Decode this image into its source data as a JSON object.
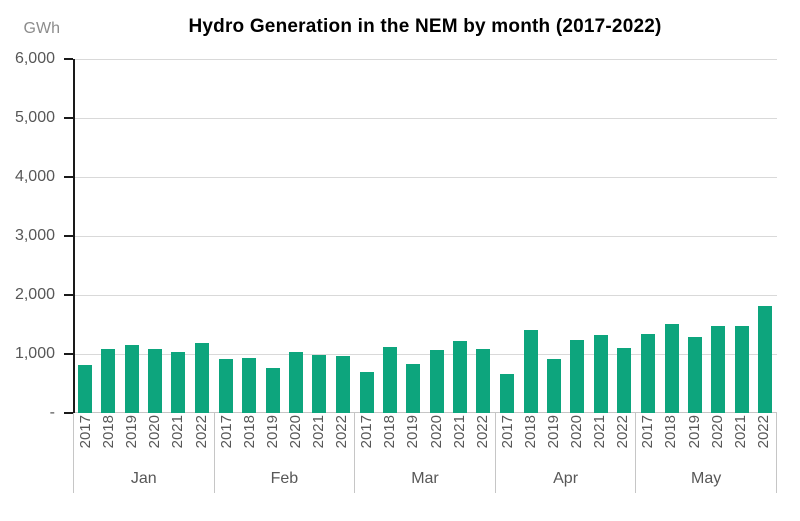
{
  "header": {
    "title": "Hydro Generation in the NEM by month (2017-2022)",
    "unit_label": "GWh"
  },
  "chart_data": {
    "type": "bar",
    "title": "Hydro Generation in the NEM by month (2017-2022)",
    "ylabel": "GWh",
    "xlabel": "",
    "ylim": [
      0,
      6000
    ],
    "ytick_interval": 1000,
    "grid": true,
    "legend": false,
    "yticks": [
      {
        "value": 0,
        "label": "-"
      },
      {
        "value": 1000,
        "label": "1,000"
      },
      {
        "value": 2000,
        "label": "2,000"
      },
      {
        "value": 3000,
        "label": "3,000"
      },
      {
        "value": 4000,
        "label": "4,000"
      },
      {
        "value": 5000,
        "label": "5,000"
      },
      {
        "value": 6000,
        "label": "6,000"
      }
    ],
    "group_labels": [
      "Jan",
      "Feb",
      "Mar",
      "Apr",
      "May"
    ],
    "bar_labels": [
      "2017",
      "2018",
      "2019",
      "2020",
      "2021",
      "2022"
    ],
    "groups": [
      {
        "month": "Jan",
        "values": [
          820,
          1090,
          1150,
          1080,
          1040,
          1190
        ]
      },
      {
        "month": "Feb",
        "values": [
          910,
          940,
          760,
          1040,
          990,
          970
        ]
      },
      {
        "month": "Mar",
        "values": [
          690,
          1120,
          830,
          1070,
          1220,
          1080
        ]
      },
      {
        "month": "Apr",
        "values": [
          660,
          1400,
          920,
          1230,
          1330,
          1100
        ]
      },
      {
        "month": "May",
        "values": [
          1340,
          1510,
          1280,
          1470,
          1480,
          1810
        ]
      }
    ],
    "colors": {
      "bar": "#0da57d",
      "gridline": "#d9d9d9",
      "axis": "#1a1a1a",
      "separator": "#c6c6c6",
      "tick_text": "#575757",
      "title_text": "#000000",
      "unit_text": "#8c8c8c"
    }
  }
}
